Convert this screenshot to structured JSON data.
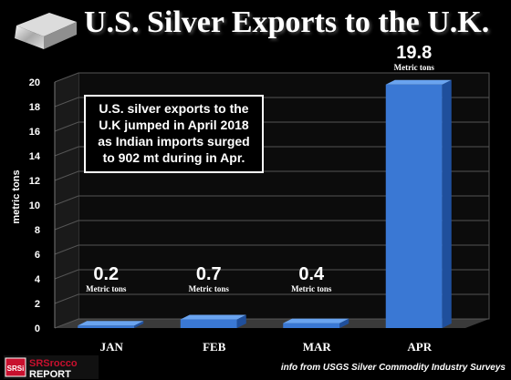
{
  "header": {
    "title": "U.S. Silver Exports to the U.K."
  },
  "annotation": {
    "lines": [
      "U.S. silver exports to the",
      "U.K jumped in April 2018",
      "as Indian imports surged",
      "to 902 mt during in Apr."
    ]
  },
  "source": "info from USGS Silver Commodity Industry Surveys",
  "logo": {
    "badge": "SRSi",
    "line1": "SRSrocco",
    "line2": "REPORT"
  },
  "colors": {
    "bar": "#3a78d4",
    "bar_dark": "#1f4f9c",
    "bar_light": "#6aa4f0"
  },
  "chart_data": {
    "type": "bar",
    "title": "U.S. Silver Exports to the U.K.",
    "xlabel": "",
    "ylabel": "metric tons",
    "categories": [
      "JAN",
      "FEB",
      "MAR",
      "APR"
    ],
    "values": [
      0.2,
      0.7,
      0.4,
      19.8
    ],
    "value_labels": [
      "0.2",
      "0.7",
      "0.4",
      "19.8"
    ],
    "unit_labels": [
      "Metric tons",
      "Metric tons",
      "Metric tons",
      "Metric tons"
    ],
    "ylim": [
      0,
      20
    ],
    "yticks": [
      0,
      2,
      4,
      6,
      8,
      10,
      12,
      14,
      16,
      18,
      20
    ],
    "grid": true
  }
}
